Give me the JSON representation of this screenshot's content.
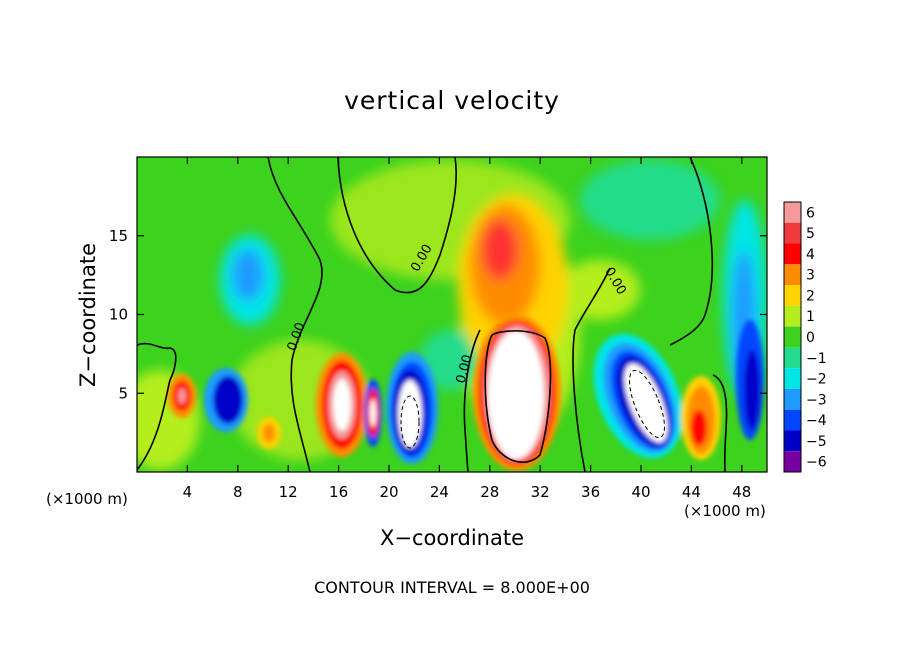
{
  "chart_data": {
    "type": "heatmap",
    "title": "vertical velocity",
    "xlabel": "X−coordinate",
    "ylabel": "Z−coordinate",
    "x_unit_label": "(×1000 m)",
    "contour_interval_label": "CONTOUR INTERVAL = 8.000E+00",
    "xlim": [
      0,
      50
    ],
    "ylim": [
      0,
      20
    ],
    "x_ticks": [
      4,
      8,
      12,
      16,
      20,
      24,
      28,
      32,
      36,
      40,
      44,
      48
    ],
    "y_ticks": [
      5,
      10,
      15
    ],
    "colorbar": {
      "ticks": [
        "6",
        "5",
        "4",
        "3",
        "2",
        "1",
        "0",
        "−1",
        "−2",
        "−3",
        "−4",
        "−5",
        "−6"
      ],
      "range": [
        -6,
        6
      ]
    },
    "contour_labels": [
      "0.00"
    ],
    "features": [
      {
        "x": 30.0,
        "z": 4.8,
        "w": 12,
        "kind": "updraft core (white, saturated)"
      },
      {
        "x": 30.0,
        "z": 13.0,
        "w": 4,
        "kind": "updraft plume"
      },
      {
        "x": 16.5,
        "z": 4.8,
        "w": 7,
        "kind": "updraft"
      },
      {
        "x": 18.8,
        "z": 3.6,
        "w": 4.5,
        "kind": "updraft"
      },
      {
        "x": 3.7,
        "z": 4.8,
        "w": 5,
        "kind": "updraft"
      },
      {
        "x": 10.5,
        "z": 2.6,
        "w": 3,
        "kind": "updraft"
      },
      {
        "x": 45.0,
        "z": 2.8,
        "w": 4.5,
        "kind": "updraft"
      },
      {
        "x": 22.0,
        "z": 3.3,
        "w": -9,
        "kind": "downdraft core (white, saturated)"
      },
      {
        "x": 39.6,
        "z": 5.0,
        "w": -9,
        "kind": "downdraft core (white, saturated)"
      },
      {
        "x": 7.8,
        "z": 4.0,
        "w": -5,
        "kind": "downdraft"
      },
      {
        "x": 10.0,
        "z": 12.0,
        "w": -2.5,
        "kind": "downdraft"
      },
      {
        "x": 47.5,
        "z": 10.0,
        "w": -3.5,
        "kind": "downdraft"
      },
      {
        "x": 36.0,
        "z": 9.0,
        "w": -1.5,
        "kind": "downdraft"
      }
    ],
    "colors": {
      "p6": "#f49a9a",
      "p5": "#ee3b3b",
      "p4": "#ff0000",
      "p3": "#ff8c00",
      "p2": "#ffd200",
      "p1": "#b4ee1e",
      "z0": "#3cd21e",
      "m1": "#20dc8c",
      "m2": "#00e6e6",
      "m3": "#1e9bff",
      "m4": "#0046ff",
      "m5": "#0000c8",
      "m6": "#7800a0"
    }
  }
}
